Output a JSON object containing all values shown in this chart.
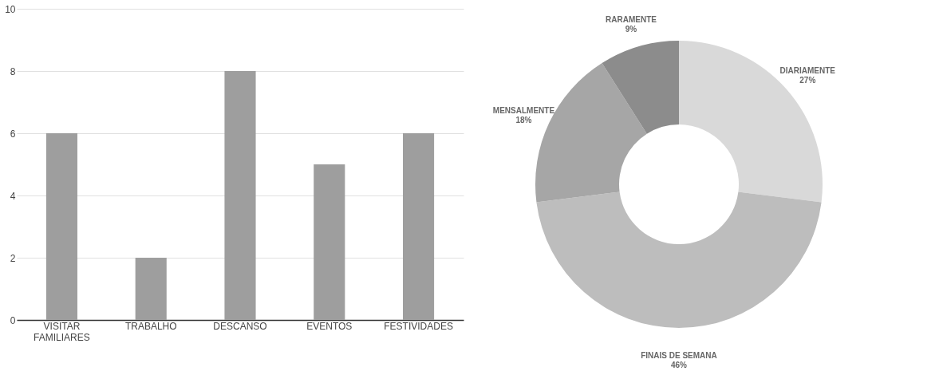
{
  "chart_data": [
    {
      "type": "bar",
      "categories": [
        "VISITAR FAMILIARES",
        "TRABALHO",
        "DESCANSO",
        "EVENTOS",
        "FESTIVIDADES"
      ],
      "values": [
        6,
        2,
        8,
        5,
        6
      ],
      "color": "#9e9e9e",
      "ylim": [
        0,
        10
      ],
      "yticks": [
        0,
        2,
        4,
        6,
        8,
        10
      ],
      "grid": "y"
    },
    {
      "type": "donut",
      "categories": [
        "DIARIAMENTE",
        "FINAIS DE SEMANA",
        "MENSALMENTE",
        "RARAMENTE"
      ],
      "values": [
        27,
        46,
        18,
        9
      ],
      "value_labels": [
        "27%",
        "46%",
        "18%",
        "9%"
      ],
      "colors": [
        "#d9d9d9",
        "#bdbdbd",
        "#a6a6a6",
        "#8c8c8c"
      ],
      "legend": false
    }
  ]
}
